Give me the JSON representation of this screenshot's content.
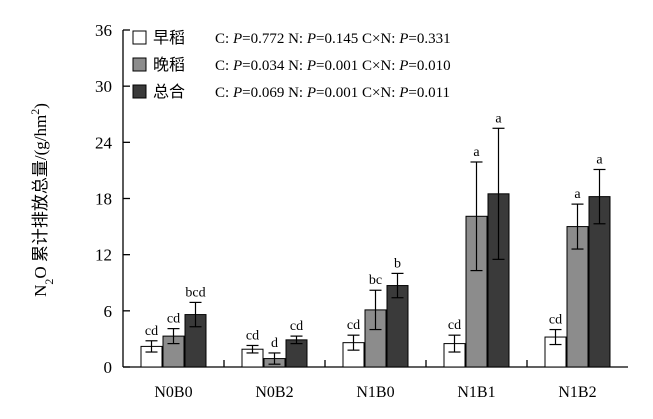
{
  "chart_data": {
    "type": "bar",
    "ylabel_parts": {
      "n": "N",
      "sub2": "2",
      "text": "O 累计排放总量/(g/hm",
      "sup2": "2",
      "close": ")"
    },
    "ylim": [
      0,
      36
    ],
    "yticks": [
      0,
      6,
      12,
      18,
      24,
      30,
      36
    ],
    "categories": [
      "N0B0",
      "N0B2",
      "N1B0",
      "N1B1",
      "N1B2"
    ],
    "series": [
      {
        "name": "早稻",
        "color": "#ffffff",
        "values": [
          2.2,
          1.9,
          2.6,
          2.5,
          3.2
        ],
        "errors": [
          0.6,
          0.4,
          0.8,
          0.9,
          0.8
        ],
        "labels": [
          "cd",
          "cd",
          "cd",
          "cd",
          "cd"
        ]
      },
      {
        "name": "晚稻",
        "color": "#8c8c8c",
        "values": [
          3.3,
          0.9,
          6.1,
          16.1,
          15.0
        ],
        "errors": [
          0.8,
          0.6,
          2.1,
          5.8,
          2.4
        ],
        "labels": [
          "cd",
          "d",
          "bc",
          "a",
          "a"
        ]
      },
      {
        "name": "总合",
        "color": "#3a3a3a",
        "values": [
          5.6,
          2.9,
          8.7,
          18.5,
          18.2
        ],
        "errors": [
          1.3,
          0.4,
          1.3,
          7.0,
          2.9
        ],
        "labels": [
          "bcd",
          "cd",
          "b",
          "a",
          "a"
        ]
      }
    ],
    "stats": [
      {
        "c": "0.772",
        "n": "0.145",
        "cn": "0.331"
      },
      {
        "c": "0.034",
        "n": "0.001",
        "cn": "0.010"
      },
      {
        "c": "0.069",
        "n": "0.001",
        "cn": "0.011"
      }
    ],
    "stats_text": {
      "c_prefix": "C: ",
      "n_prefix": "N: ",
      "cn_prefix": "C×N: ",
      "p": "P",
      "eq": "="
    },
    "legend_position": "top-left",
    "grid": false
  }
}
